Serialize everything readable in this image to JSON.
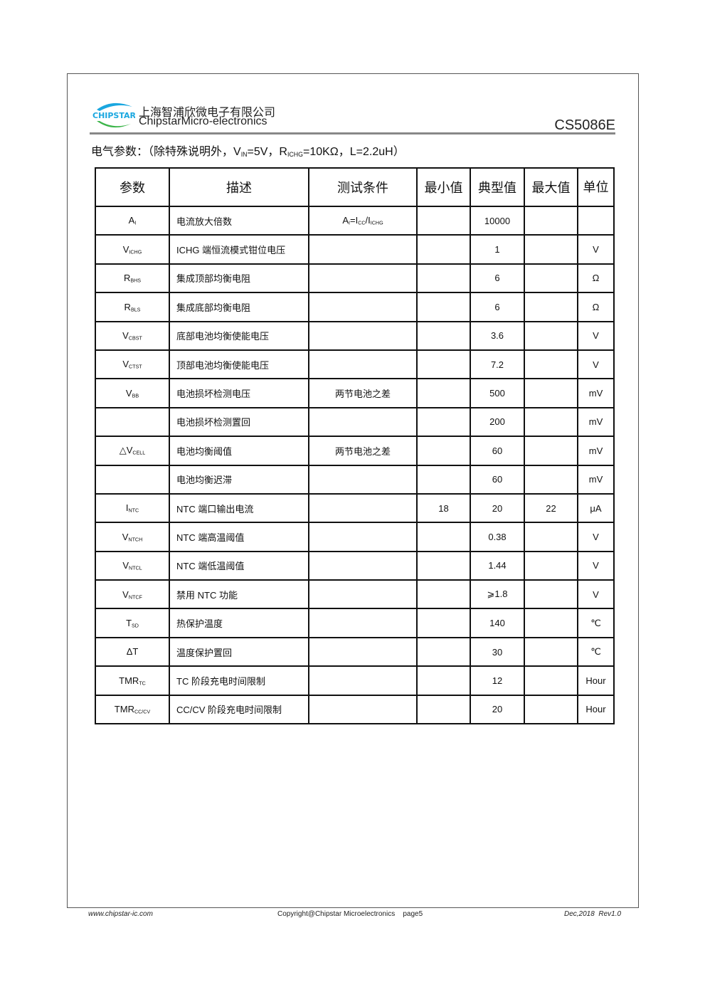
{
  "header": {
    "logo_text": "CHIPSTAR",
    "company_cn": "上海智浦欣微电子有限公司",
    "company_en": "ChipstarMicro-electronics",
    "model": "CS5086E"
  },
  "subtitle": {
    "prefix": "电气参数：（除特殊说明外，V",
    "vin_sub": "IN",
    "mid": "=5V，R",
    "r_sub": "ICHG",
    "suffix": "=10KΩ，L=2.2uH）"
  },
  "table": {
    "headers": [
      "参数",
      "描述",
      "测试条件",
      "最小值",
      "典型值",
      "最大值",
      "单位"
    ],
    "rows": [
      {
        "param": "A",
        "sub": "I",
        "desc": "电流放大倍数",
        "cond": "A_I=I_CC/I_ICHG",
        "min": "",
        "typ": "10000",
        "max": "",
        "unit": ""
      },
      {
        "param": "V",
        "sub": "ICHG",
        "desc": "ICHG 端恒流模式钳位电压",
        "cond": "",
        "min": "",
        "typ": "1",
        "max": "",
        "unit": "V"
      },
      {
        "param": "R",
        "sub": "BHS",
        "desc": "集成顶部均衡电阻",
        "cond": "",
        "min": "",
        "typ": "6",
        "max": "",
        "unit": "Ω"
      },
      {
        "param": "R",
        "sub": "BLS",
        "desc": "集成底部均衡电阻",
        "cond": "",
        "min": "",
        "typ": "6",
        "max": "",
        "unit": "Ω"
      },
      {
        "param": "V",
        "sub": "CBST",
        "desc": "底部电池均衡使能电压",
        "cond": "",
        "min": "",
        "typ": "3.6",
        "max": "",
        "unit": "V"
      },
      {
        "param": "V",
        "sub": "CTST",
        "desc": "顶部电池均衡使能电压",
        "cond": "",
        "min": "",
        "typ": "7.2",
        "max": "",
        "unit": "V"
      },
      {
        "param": "V",
        "sub": "BB",
        "desc": "电池损坏检测电压",
        "cond": "两节电池之差",
        "min": "",
        "typ": "500",
        "max": "",
        "unit": "mV"
      },
      {
        "param": "",
        "sub": "",
        "desc": "电池损坏检测置回",
        "cond": "",
        "min": "",
        "typ": "200",
        "max": "",
        "unit": "mV"
      },
      {
        "param": "△V",
        "sub": "CELL",
        "desc": "电池均衡阈值",
        "cond": "两节电池之差",
        "min": "",
        "typ": "60",
        "max": "",
        "unit": "mV"
      },
      {
        "param": "",
        "sub": "",
        "desc": "电池均衡迟滞",
        "cond": "",
        "min": "",
        "typ": "60",
        "max": "",
        "unit": "mV"
      },
      {
        "param": "I",
        "sub": "NTC",
        "desc": "NTC 端口输出电流",
        "cond": "",
        "min": "18",
        "typ": "20",
        "max": "22",
        "unit": "μA"
      },
      {
        "param": "V",
        "sub": "NTCH",
        "desc": "NTC 端高温阈值",
        "cond": "",
        "min": "",
        "typ": "0.38",
        "max": "",
        "unit": "V"
      },
      {
        "param": "V",
        "sub": "NTCL",
        "desc": "NTC 端低温阈值",
        "cond": "",
        "min": "",
        "typ": "1.44",
        "max": "",
        "unit": "V"
      },
      {
        "param": "V",
        "sub": "NTCF",
        "desc": "禁用 NTC 功能",
        "cond": "",
        "min": "",
        "typ": "⩾1.8",
        "max": "",
        "unit": "V"
      },
      {
        "param": "T",
        "sub": "SD",
        "desc": "热保护温度",
        "cond": "",
        "min": "",
        "typ": "140",
        "max": "",
        "unit": "℃"
      },
      {
        "param": "ΔT",
        "sub": "",
        "desc": "温度保护置回",
        "cond": "",
        "min": "",
        "typ": "30",
        "max": "",
        "unit": "℃"
      },
      {
        "param": "TMR",
        "sub": "TC",
        "desc": "TC 阶段充电时间限制",
        "cond": "",
        "min": "",
        "typ": "12",
        "max": "",
        "unit": "Hour"
      },
      {
        "param": "TMR",
        "sub": "CC/CV",
        "desc": "CC/CV 阶段充电时间限制",
        "cond": "",
        "min": "",
        "typ": "20",
        "max": "",
        "unit": "Hour"
      }
    ]
  },
  "footer": {
    "website": "www.chipstar-ic.com",
    "copyright": "Copyright@Chipstar Microelectronics    page5",
    "revision": "Dec,2018  Rev1.0"
  },
  "colors": {
    "logo_blue": "#1aa7e0",
    "logo_green": "#3cb54a"
  }
}
